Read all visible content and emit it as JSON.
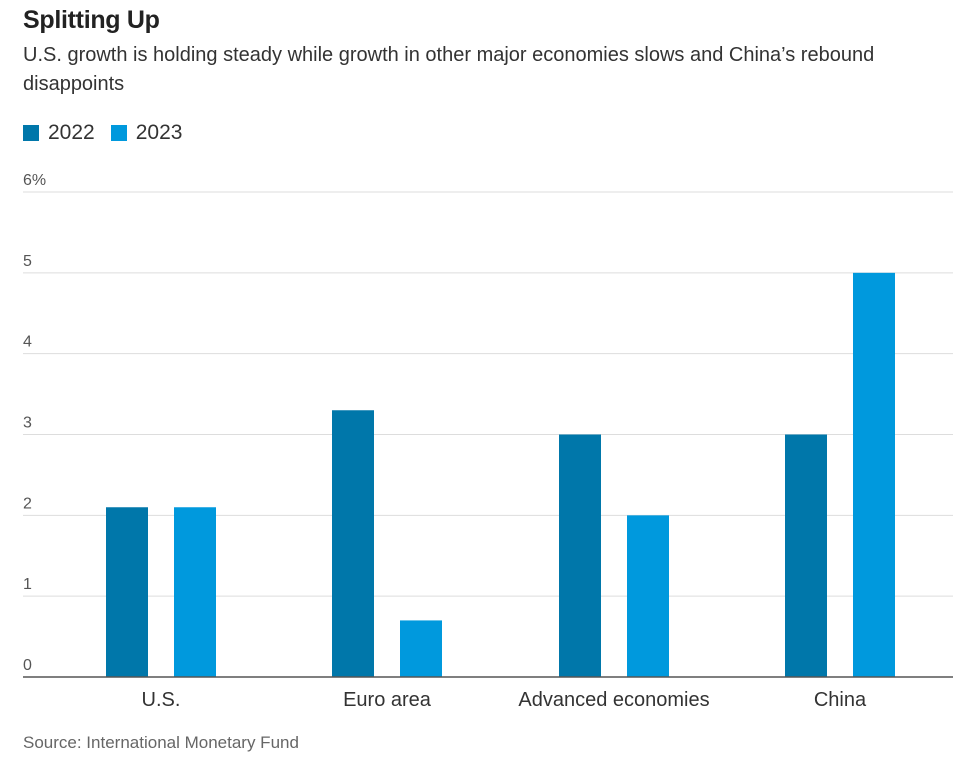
{
  "chart_data": {
    "type": "bar",
    "title": "Splitting Up",
    "subtitle": "U.S. growth is holding steady while growth in other major economies slows and China’s rebound disappoints",
    "categories": [
      "U.S.",
      "Euro area",
      "Advanced economies",
      "China"
    ],
    "series": [
      {
        "name": "2022",
        "color": "#0077AA",
        "values": [
          2.1,
          3.3,
          3.0,
          3.0
        ]
      },
      {
        "name": "2023",
        "color": "#0099DD",
        "values": [
          2.1,
          0.7,
          2.0,
          5.0
        ]
      }
    ],
    "ylim": [
      0,
      6
    ],
    "yticks": [
      "0",
      "1",
      "2",
      "3",
      "4",
      "5",
      "6%"
    ],
    "xlabel": "",
    "ylabel": "",
    "grid": true,
    "legend_position": "top-left",
    "source": "Source: International Monetary Fund"
  }
}
